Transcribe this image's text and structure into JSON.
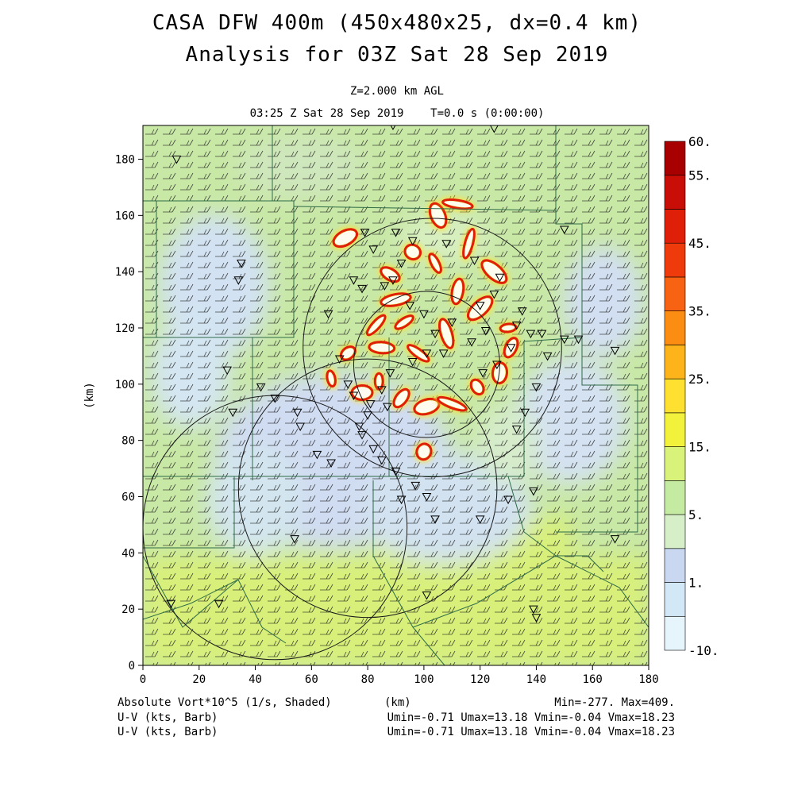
{
  "titles": {
    "line1": "CASA DFW 400m (450x480x25, dx=0.4 km)",
    "line2": "Analysis for 03Z Sat 28 Sep 2019",
    "level": "Z=2.000 km AGL",
    "time": "03:25 Z Sat 28 Sep 2019    T=0.0 s (0:00:00)"
  },
  "footer": {
    "field_label": "Absolute Vort*10^5 (1/s, Shaded)",
    "x_unit": "(km)",
    "minmax": "Min=-277. Max=409.",
    "uv1_label": "U-V (kts, Barb)",
    "uv1_stats": "Umin=-0.71 Umax=13.18 Vmin=-0.04 Vmax=18.23",
    "uv2_label": "U-V (kts, Barb)",
    "uv2_stats": "Umin=-0.71 Umax=13.18 Vmin=-0.04 Vmax=18.23"
  },
  "chart_data": {
    "type": "heatmap",
    "title": "CASA DFW 400m (450x480x25, dx=0.4 km)",
    "xlabel": "",
    "ylabel": "(km)",
    "xlim": [
      0,
      180
    ],
    "ylim": [
      0,
      192
    ],
    "xticks": [
      0,
      20,
      40,
      60,
      80,
      100,
      120,
      140,
      160,
      180
    ],
    "yticks": [
      0,
      20,
      40,
      60,
      80,
      100,
      120,
      140,
      160,
      180
    ],
    "colorbar": {
      "levels": [
        -10,
        0,
        1,
        3,
        5,
        10,
        15,
        20,
        25,
        30,
        35,
        40,
        45,
        50,
        55,
        60
      ],
      "colors": [
        "#e6f4fb",
        "#d2e8f6",
        "#c9d7f0",
        "#d6efc8",
        "#c5eba2",
        "#d9f27a",
        "#f2f23c",
        "#fde030",
        "#fdb41a",
        "#fb8d12",
        "#f76312",
        "#ef3b0c",
        "#e01f08",
        "#c80e06",
        "#a80000"
      ],
      "labels": [
        {
          "text": "60.",
          "value": 60
        },
        {
          "text": "55.",
          "value": 55
        },
        {
          "text": "45.",
          "value": 45
        },
        {
          "text": "35.",
          "value": 35
        },
        {
          "text": "25.",
          "value": 25
        },
        {
          "text": "15.",
          "value": 15
        },
        {
          "text": "5.",
          "value": 5
        },
        {
          "text": "1.",
          "value": 1
        },
        {
          "text": "-10.",
          "value": -10
        }
      ]
    },
    "range_rings_km": [
      {
        "cx": 101,
        "cy": 107,
        "r": 26
      },
      {
        "cx": 103,
        "cy": 113,
        "r": 46
      },
      {
        "cx": 80,
        "cy": 63,
        "r": 46
      },
      {
        "cx": 47,
        "cy": 49,
        "r": 47
      }
    ],
    "hotspots_km": [
      [
        84,
        101
      ],
      [
        92,
        95
      ],
      [
        101,
        92
      ],
      [
        110,
        93
      ],
      [
        119,
        99
      ],
      [
        127,
        104
      ],
      [
        83,
        121
      ],
      [
        90,
        130
      ],
      [
        96,
        147
      ],
      [
        104,
        143
      ],
      [
        112,
        133
      ],
      [
        120,
        127
      ],
      [
        130,
        120
      ],
      [
        88,
        139
      ],
      [
        105,
        160
      ],
      [
        116,
        150
      ],
      [
        73,
        111
      ],
      [
        78,
        97
      ],
      [
        98,
        111
      ],
      [
        108,
        118
      ],
      [
        100,
        76
      ],
      [
        93,
        122
      ],
      [
        85,
        113
      ],
      [
        125,
        140
      ],
      [
        67,
        102
      ],
      [
        131,
        113
      ],
      [
        72,
        152
      ],
      [
        112,
        164
      ]
    ],
    "stations_km": [
      [
        12,
        180
      ],
      [
        35,
        143
      ],
      [
        34,
        137
      ],
      [
        30,
        105
      ],
      [
        42,
        99
      ],
      [
        32,
        90
      ],
      [
        55,
        90
      ],
      [
        56,
        85
      ],
      [
        62,
        75
      ],
      [
        67,
        72
      ],
      [
        77,
        85
      ],
      [
        80,
        89
      ],
      [
        78,
        82
      ],
      [
        82,
        77
      ],
      [
        85,
        73
      ],
      [
        90,
        69
      ],
      [
        97,
        64
      ],
      [
        101,
        60
      ],
      [
        92,
        59
      ],
      [
        104,
        52
      ],
      [
        120,
        52
      ],
      [
        130,
        59
      ],
      [
        139,
        62
      ],
      [
        133,
        84
      ],
      [
        136,
        90
      ],
      [
        140,
        99
      ],
      [
        144,
        110
      ],
      [
        150,
        116
      ],
      [
        155,
        116
      ],
      [
        168,
        112
      ],
      [
        131,
        113
      ],
      [
        126,
        107
      ],
      [
        121,
        104
      ],
      [
        117,
        115
      ],
      [
        122,
        119
      ],
      [
        133,
        121
      ],
      [
        138,
        118
      ],
      [
        142,
        118
      ],
      [
        120,
        128
      ],
      [
        125,
        132
      ],
      [
        135,
        126
      ],
      [
        127,
        138
      ],
      [
        118,
        144
      ],
      [
        108,
        150
      ],
      [
        96,
        151
      ],
      [
        82,
        148
      ],
      [
        75,
        137
      ],
      [
        78,
        134
      ],
      [
        66,
        125
      ],
      [
        70,
        109
      ],
      [
        73,
        100
      ],
      [
        75,
        96
      ],
      [
        81,
        93
      ],
      [
        87,
        92
      ],
      [
        85,
        98
      ],
      [
        88,
        104
      ],
      [
        96,
        108
      ],
      [
        101,
        111
      ],
      [
        107,
        111
      ],
      [
        104,
        118
      ],
      [
        110,
        122
      ],
      [
        100,
        125
      ],
      [
        95,
        128
      ],
      [
        86,
        135
      ],
      [
        89,
        137
      ],
      [
        92,
        143
      ],
      [
        79,
        154
      ],
      [
        90,
        154
      ],
      [
        89,
        192
      ],
      [
        125,
        191
      ],
      [
        150,
        155
      ],
      [
        168,
        45
      ],
      [
        139,
        20
      ],
      [
        140,
        17
      ],
      [
        101,
        25
      ],
      [
        54,
        45
      ],
      [
        27,
        22
      ],
      [
        10,
        22
      ],
      [
        47,
        95
      ]
    ]
  }
}
